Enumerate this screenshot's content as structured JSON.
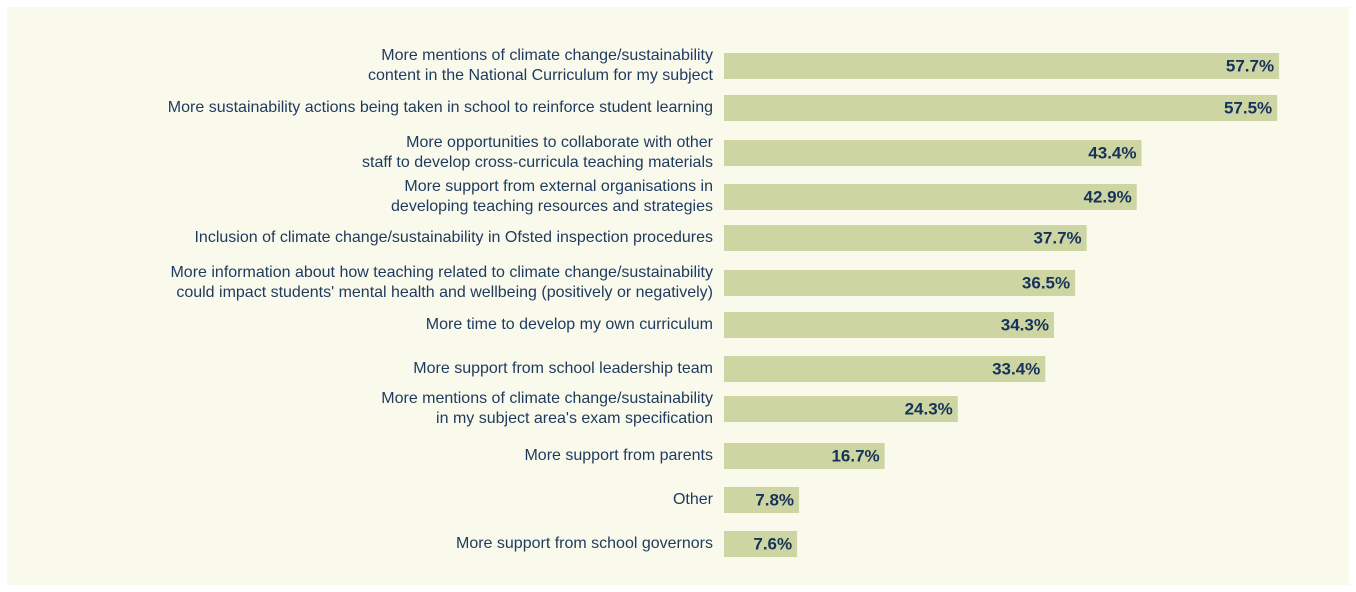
{
  "chart_data": {
    "type": "bar",
    "orientation": "horizontal",
    "categories": [
      "More mentions of climate change/sustainability\ncontent in the National Curriculum for my subject",
      "More sustainability actions being taken in school to reinforce student learning",
      "More opportunities to collaborate with other\nstaff to develop cross-curricula teaching materials",
      "More support from external organisations in\ndeveloping teaching resources and strategies",
      "Inclusion of climate change/sustainability in Ofsted inspection procedures",
      "More information about how teaching related to climate change/sustainability\ncould impact students' mental health and wellbeing (positively or negatively)",
      "More time to develop my own curriculum",
      "More support from school leadership team",
      "More mentions of climate change/sustainability\nin my subject area's exam specification",
      "More support from parents",
      "Other",
      "More support from school governors"
    ],
    "values": [
      57.7,
      57.5,
      43.4,
      42.9,
      37.7,
      36.5,
      34.3,
      33.4,
      24.3,
      16.7,
      7.8,
      7.6
    ],
    "value_labels": [
      "57.7%",
      "57.5%",
      "43.4%",
      "42.9%",
      "37.7%",
      "36.5%",
      "34.3%",
      "33.4%",
      "24.3%",
      "16.7%",
      "7.8%",
      "7.6%"
    ],
    "color": "#cdd6a2"
  }
}
